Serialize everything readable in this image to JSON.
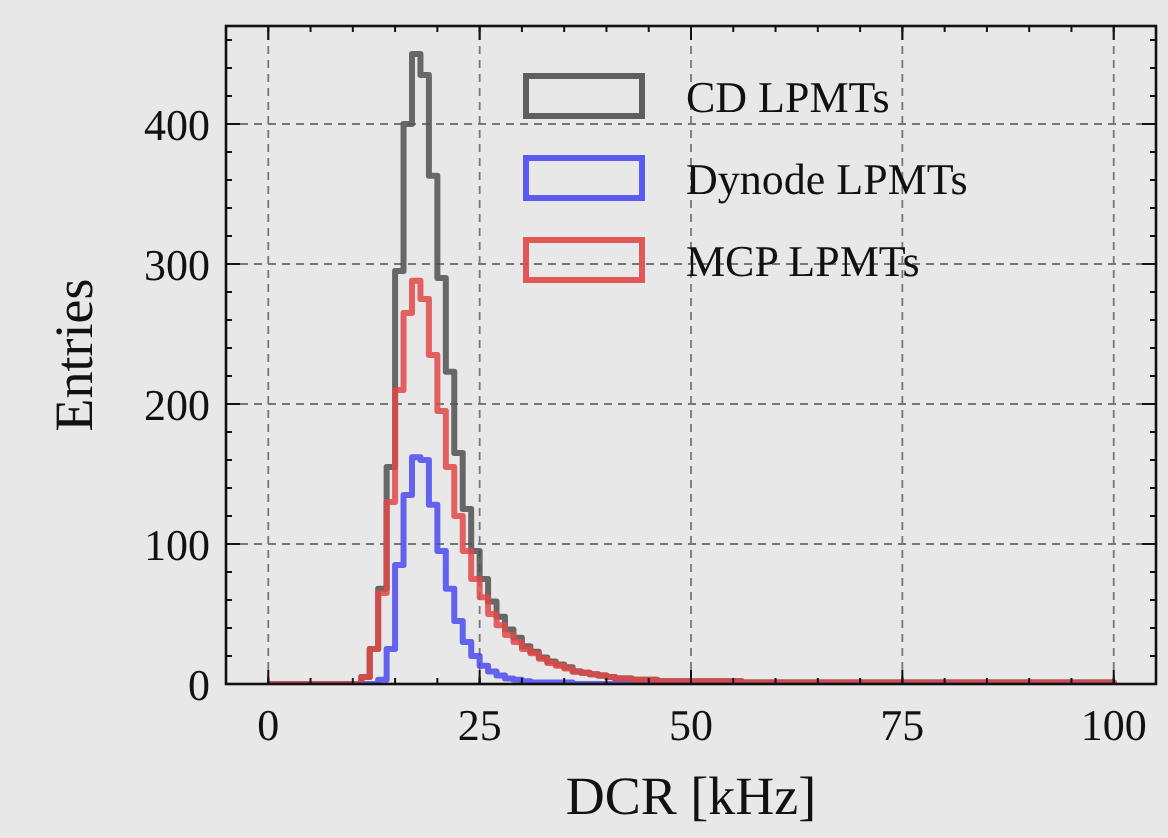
{
  "chart_data": {
    "type": "histogram",
    "xlabel": "DCR [kHz]",
    "ylabel": "Entries",
    "bins": [
      0,
      1,
      2,
      3,
      4,
      5,
      6,
      7,
      8,
      9,
      10,
      11,
      12,
      13,
      14,
      15,
      16,
      17,
      18,
      19,
      20,
      21,
      22,
      23,
      24,
      25,
      26,
      27,
      28,
      29,
      30,
      31,
      32,
      33,
      34,
      35,
      36,
      37,
      38,
      39,
      40,
      41,
      42,
      43,
      44,
      45,
      46,
      47,
      48,
      49,
      50,
      51,
      52,
      53,
      54,
      55,
      56,
      57,
      58,
      59,
      60,
      61,
      62,
      63,
      64,
      65,
      66,
      67,
      68,
      69,
      70,
      71,
      72,
      73,
      74,
      75,
      76,
      77,
      78,
      79,
      80,
      81,
      82,
      83,
      84,
      85,
      86,
      87,
      88,
      89,
      90,
      91,
      92,
      93,
      94,
      95,
      96,
      97,
      98,
      99,
      100
    ],
    "series": [
      {
        "name": "CD LPMTs",
        "color": "#505050",
        "values": [
          0,
          0,
          0,
          0,
          0,
          0,
          0,
          0,
          0,
          0,
          0,
          5,
          25,
          68,
          155,
          295,
          400,
          450,
          435,
          363,
          290,
          223,
          165,
          125,
          95,
          75,
          59,
          48,
          39,
          33,
          27,
          23,
          19,
          16,
          14,
          12,
          9,
          8,
          7,
          6,
          5,
          4,
          4,
          3,
          3,
          3,
          2,
          2,
          2,
          2,
          2,
          2,
          2,
          2,
          2,
          2,
          1,
          1,
          1,
          1,
          1,
          1,
          1,
          1,
          1,
          1,
          1,
          1,
          1,
          1,
          1,
          1,
          1,
          1,
          1,
          1,
          1,
          1,
          1,
          1,
          1,
          1,
          1,
          1,
          1,
          1,
          1,
          1,
          1,
          1,
          1,
          1,
          1,
          1,
          1,
          1,
          1,
          1,
          1,
          1
        ]
      },
      {
        "name": "Dynode LPMTs",
        "color": "#4a4af0",
        "values": [
          0,
          0,
          0,
          0,
          0,
          0,
          0,
          0,
          0,
          0,
          0,
          0,
          0,
          3,
          25,
          85,
          135,
          162,
          160,
          128,
          95,
          68,
          45,
          30,
          20,
          13,
          9,
          6,
          4,
          3,
          2,
          1,
          1,
          1,
          1,
          1,
          0,
          0,
          0,
          0,
          0,
          0,
          0,
          0,
          0,
          0,
          0,
          0,
          0,
          0,
          0,
          0,
          0,
          0,
          0,
          0,
          0,
          0,
          0,
          0,
          0,
          0,
          0,
          0,
          0,
          0,
          0,
          0,
          0,
          0,
          0,
          0,
          0,
          0,
          0,
          0,
          0,
          0,
          0,
          0,
          0,
          0,
          0,
          0,
          0,
          0,
          0,
          0,
          0,
          0,
          0,
          0,
          0,
          0,
          0,
          0,
          0,
          0,
          0,
          0
        ]
      },
      {
        "name": "MCP LPMTs",
        "color": "#e04848",
        "values": [
          0,
          0,
          0,
          0,
          0,
          0,
          0,
          0,
          0,
          0,
          0,
          5,
          25,
          65,
          130,
          210,
          265,
          288,
          275,
          235,
          195,
          155,
          120,
          95,
          75,
          62,
          50,
          42,
          35,
          30,
          25,
          22,
          18,
          15,
          13,
          11,
          9,
          8,
          7,
          6,
          5,
          4,
          4,
          3,
          3,
          3,
          2,
          2,
          2,
          2,
          2,
          2,
          2,
          2,
          2,
          2,
          1,
          1,
          1,
          1,
          1,
          1,
          1,
          1,
          1,
          1,
          1,
          1,
          1,
          1,
          1,
          1,
          1,
          1,
          1,
          1,
          1,
          1,
          1,
          1,
          1,
          1,
          1,
          1,
          1,
          1,
          1,
          1,
          1,
          1,
          1,
          1,
          1,
          1,
          1,
          1,
          1,
          1,
          1,
          1
        ]
      }
    ],
    "xlim": [
      -5,
      105
    ],
    "ylim": [
      0,
      470
    ],
    "xticks": [
      0,
      25,
      50,
      75,
      100
    ],
    "yticks": [
      0,
      100,
      200,
      300,
      400
    ],
    "grid": true,
    "legend": "top right"
  }
}
